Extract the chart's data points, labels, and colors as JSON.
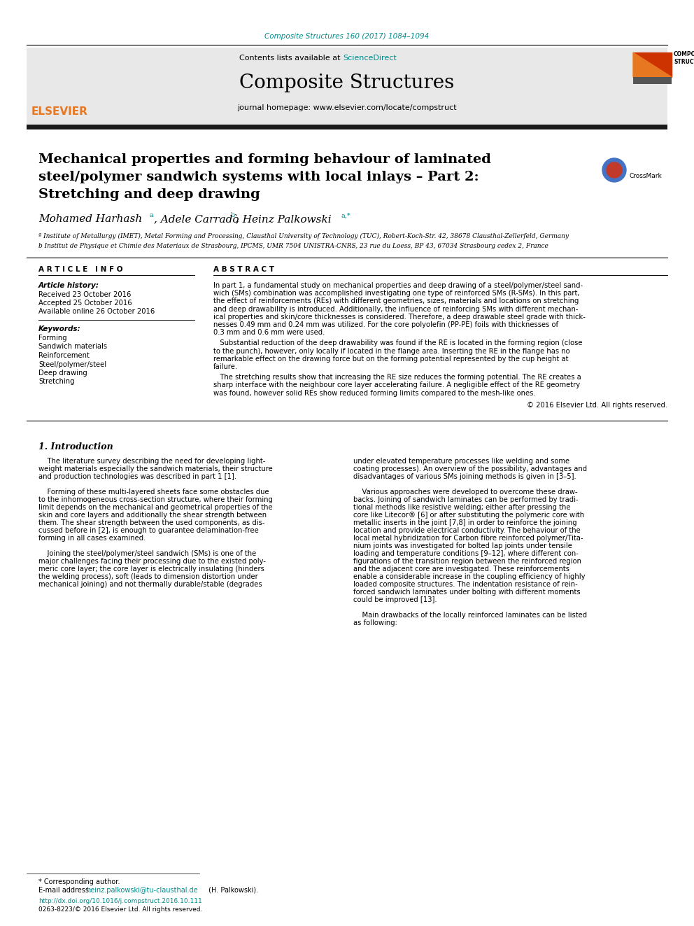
{
  "journal_ref": "Composite Structures 160 (2017) 1084–1094",
  "journal_ref_color": "#008B8B",
  "contents_line": "Contents lists available at ",
  "sciencedirect_text": "ScienceDirect",
  "sciencedirect_color": "#008B8B",
  "journal_name": "Composite Structures",
  "journal_homepage": "journal homepage: www.elsevier.com/locate/compstruct",
  "thick_bar_color": "#1a1a1a",
  "header_bg_color": "#e8e8e8",
  "paper_title_line1": "Mechanical properties and forming behaviour of laminated",
  "paper_title_line2": "steel/polymer sandwich systems with local inlays – Part 2:",
  "paper_title_line3": "Stretching and deep drawing",
  "affil_a": "ª Institute of Metallurgy (IMET), Metal Forming and Processing, Clausthal University of Technology (TUC), Robert-Koch-Str. 42, 38678 Clausthal-Zellerfeld, Germany",
  "affil_b": "b Institut de Physique et Chimie des Materiaux de Strasbourg, IPCMS, UMR 7504 UNISTRA-CNRS, 23 rue du Loess, BP 43, 67034 Strasbourg cedex 2, France",
  "article_info_title": "A R T I C L E   I N F O",
  "abstract_title": "A B S T R A C T",
  "article_history_title": "Article history:",
  "received": "Received 23 October 2016",
  "accepted": "Accepted 25 October 2016",
  "available": "Available online 26 October 2016",
  "keywords_title": "Keywords:",
  "keywords": [
    "Forming",
    "Sandwich materials",
    "Reinforcement",
    "Steel/polymer/steel",
    "Deep drawing",
    "Stretching"
  ],
  "abs_lines1": [
    "In part 1, a fundamental study on mechanical properties and deep drawing of a steel/polymer/steel sand-",
    "wich (SMs) combination was accomplished investigating one type of reinforced SMs (R-SMs). In this part,",
    "the effect of reinforcements (REs) with different geometries, sizes, materials and locations on stretching",
    "and deep drawability is introduced. Additionally, the influence of reinforcing SMs with different mechan-",
    "ical properties and skin/core thicknesses is considered. Therefore, a deep drawable steel grade with thick-",
    "nesses 0.49 mm and 0.24 mm was utilized. For the core polyolefin (PP-PE) foils with thicknesses of",
    "0.3 mm and 0.6 mm were used."
  ],
  "abs_lines2": [
    "   Substantial reduction of the deep drawability was found if the RE is located in the forming region (close",
    "to the punch), however, only locally if located in the flange area. Inserting the RE in the flange has no",
    "remarkable effect on the drawing force but on the forming potential represented by the cup height at",
    "failure."
  ],
  "abs_lines3": [
    "   The stretching results show that increasing the RE size reduces the forming potential. The RE creates a",
    "sharp interface with the neighbour core layer accelerating failure. A negligible effect of the RE geometry",
    "was found, however solid REs show reduced forming limits compared to the mesh-like ones."
  ],
  "abstract_copyright": "© 2016 Elsevier Ltd. All rights reserved.",
  "section1_title": "1. Introduction",
  "intro_col1": [
    "    The literature survey describing the need for developing light-",
    "weight materials especially the sandwich materials, their structure",
    "and production technologies was described in part 1 [1].",
    "",
    "    Forming of these multi-layered sheets face some obstacles due",
    "to the inhomogeneous cross-section structure, where their forming",
    "limit depends on the mechanical and geometrical properties of the",
    "skin and core layers and additionally the shear strength between",
    "them. The shear strength between the used components, as dis-",
    "cussed before in [2], is enough to guarantee delamination-free",
    "forming in all cases examined.",
    "",
    "    Joining the steel/polymer/steel sandwich (SMs) is one of the",
    "major challenges facing their processing due to the existed poly-",
    "meric core layer; the core layer is electrically insulating (hinders",
    "the welding process), soft (leads to dimension distortion under",
    "mechanical joining) and not thermally durable/stable (degrades"
  ],
  "intro_col2": [
    "under elevated temperature processes like welding and some",
    "coating processes). An overview of the possibility, advantages and",
    "disadvantages of various SMs joining methods is given in [3–5].",
    "",
    "    Various approaches were developed to overcome these draw-",
    "backs. Joining of sandwich laminates can be performed by tradi-",
    "tional methods like resistive welding; either after pressing the",
    "core like Litecor® [6] or after substituting the polymeric core with",
    "metallic inserts in the joint [7,8] in order to reinforce the joining",
    "location and provide electrical conductivity. The behaviour of the",
    "local metal hybridization for Carbon fibre reinforced polymer/Tita-",
    "nium joints was investigated for bolted lap joints under tensile",
    "loading and temperature conditions [9–12], where different con-",
    "figurations of the transition region between the reinforced region",
    "and the adjacent core are investigated. These reinforcements",
    "enable a considerable increase in the coupling efficiency of highly",
    "loaded composite structures. The indentation resistance of rein-",
    "forced sandwich laminates under bolting with different moments",
    "could be improved [13].",
    "",
    "    Main drawbacks of the locally reinforced laminates can be listed",
    "as following:"
  ],
  "footnote_star": "* Corresponding author.",
  "footnote_email_label": "E-mail address: ",
  "footnote_email": "heinz.palkowski@tu-clausthal.de",
  "footnote_email_name": " (H. Palkowski).",
  "doi_line": "http://dx.doi.org/10.1016/j.compstruct.2016.10.111",
  "issn_line": "0263-8223/© 2016 Elsevier Ltd. All rights reserved.",
  "bg_color": "#ffffff",
  "text_color": "#000000",
  "link_color": "#008B8B"
}
